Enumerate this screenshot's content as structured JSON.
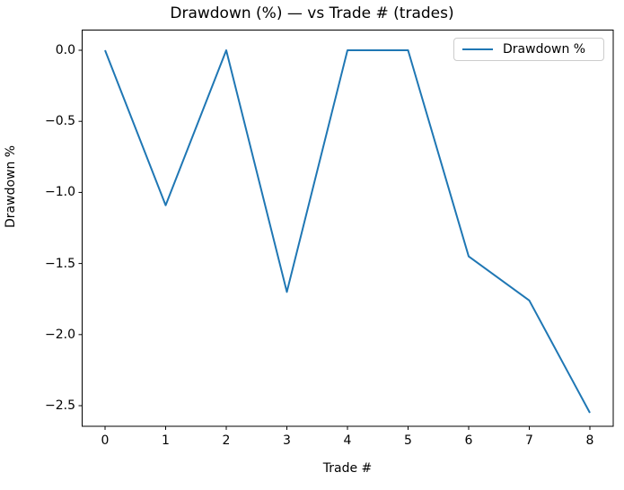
{
  "title": "Drawdown (%) — vs Trade # (trades)",
  "axes": {
    "xlabel": "Trade #",
    "ylabel": "Drawdown %"
  },
  "legend": {
    "position": "upper right",
    "entries": [
      {
        "label": "Drawdown %",
        "color": "#1f77b4"
      }
    ]
  },
  "chart_data": {
    "type": "line",
    "title": "Drawdown (%) — vs Trade # (trades)",
    "xlabel": "Trade #",
    "ylabel": "Drawdown %",
    "x": [
      0,
      1,
      2,
      3,
      4,
      5,
      6,
      7,
      8
    ],
    "series": [
      {
        "name": "Drawdown %",
        "color": "#1f77b4",
        "values": [
          0.0,
          -1.09,
          0.0,
          -1.7,
          0.0,
          0.0,
          -1.45,
          -1.76,
          -2.55
        ]
      }
    ],
    "xlim": [
      -0.378,
      8.385
    ],
    "ylim": [
      -2.645,
      0.142
    ],
    "x_tick_values": [
      0,
      1,
      2,
      3,
      4,
      5,
      6,
      7,
      8
    ],
    "x_tick_labels": [
      "0",
      "1",
      "2",
      "3",
      "4",
      "5",
      "6",
      "7",
      "8"
    ],
    "y_tick_values": [
      0.0,
      -0.5,
      -1.0,
      -1.5,
      -2.0,
      -2.5
    ],
    "y_tick_labels": [
      "0.0",
      "−0.5",
      "−1.0",
      "−1.5",
      "−2.0",
      "−2.5"
    ],
    "grid": false,
    "legend_position": "upper right"
  },
  "colors": {
    "line": "#1f77b4",
    "spine": "#000000",
    "legend_border": "#cccccc",
    "background": "#ffffff",
    "text": "#000000"
  }
}
